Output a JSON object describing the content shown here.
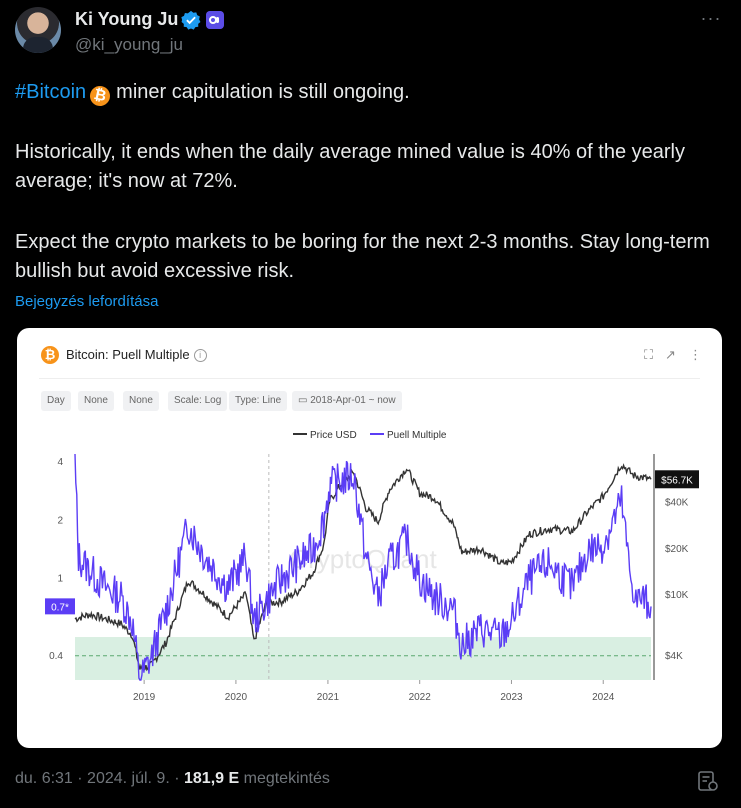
{
  "author": {
    "name": "Ki Young Ju",
    "handle": "@ki_young_ju"
  },
  "tweet": {
    "hashtag": "#Bitcoin",
    "line1_rest": "miner capitulation is still ongoing.",
    "para2": "Historically, it ends when the daily average mined value is 40% of the yearly average; it's now at 72%.",
    "para3": "Expect the crypto markets to be boring for the next 2-3 months. Stay long-term bullish but avoid excessive risk.",
    "translate_label": "Bejegyzés lefordítása"
  },
  "card": {
    "title": "Bitcoin: Puell Multiple",
    "filters": [
      "Day",
      "None",
      "None",
      "Scale: Log",
      "Type: Line",
      "2018-Apr-01 ~ now"
    ],
    "watermark": "CryptoQuant"
  },
  "colors": {
    "price": "#333333",
    "puell": "#5b3df5",
    "band": "#d9efe2",
    "link": "#1d9bf0"
  },
  "chart_data": {
    "type": "line",
    "title": "Bitcoin: Puell Multiple",
    "x_range": [
      "2018-04-01",
      "2024-07-09"
    ],
    "x_ticks": [
      "2019",
      "2020",
      "2021",
      "2022",
      "2023",
      "2024"
    ],
    "left_axis": {
      "label": "Puell Multiple",
      "scale": "log",
      "ticks": [
        4,
        2,
        1,
        0.4
      ],
      "current_label": "0.7*"
    },
    "right_axis": {
      "label": "Price USD",
      "scale": "log",
      "ticks": [
        "$40K",
        "$20K",
        "$10K",
        "$4K"
      ],
      "current_label": "$56.7K"
    },
    "band": {
      "from": 0.3,
      "to": 0.5,
      "dashed_at": 0.4
    },
    "legend": [
      "Price USD",
      "Puell Multiple"
    ],
    "series": [
      {
        "name": "Price USD",
        "x": [
          "2018-04-01",
          "2018-06-01",
          "2018-08-01",
          "2018-10-01",
          "2018-11-15",
          "2018-12-15",
          "2019-02-01",
          "2019-04-01",
          "2019-06-26",
          "2019-09-01",
          "2019-12-01",
          "2020-02-10",
          "2020-03-13",
          "2020-05-01",
          "2020-07-01",
          "2020-09-01",
          "2020-11-01",
          "2020-12-15",
          "2021-01-08",
          "2021-02-20",
          "2021-04-14",
          "2021-06-01",
          "2021-07-20",
          "2021-09-01",
          "2021-11-10",
          "2022-01-01",
          "2022-03-01",
          "2022-05-15",
          "2022-06-18",
          "2022-09-01",
          "2022-11-21",
          "2023-01-01",
          "2023-03-15",
          "2023-06-01",
          "2023-09-01",
          "2023-11-01",
          "2024-01-01",
          "2024-03-14",
          "2024-05-01",
          "2024-07-09"
        ],
        "values": [
          7000,
          7500,
          7000,
          6500,
          5500,
          3300,
          3500,
          5000,
          12500,
          10000,
          7200,
          10200,
          5000,
          8800,
          9100,
          10500,
          13800,
          21000,
          41000,
          52000,
          63000,
          37000,
          30000,
          48000,
          67000,
          46000,
          43000,
          29000,
          19000,
          20000,
          16000,
          16500,
          25000,
          27000,
          26000,
          35000,
          44000,
          71000,
          60000,
          56700
        ]
      },
      {
        "name": "Puell Multiple",
        "x": [
          "2018-04-01",
          "2018-04-15",
          "2018-06-01",
          "2018-08-01",
          "2018-10-01",
          "2018-11-15",
          "2018-12-15",
          "2019-02-01",
          "2019-04-01",
          "2019-06-26",
          "2019-09-01",
          "2019-12-01",
          "2020-02-10",
          "2020-03-13",
          "2020-05-11",
          "2020-07-01",
          "2020-09-01",
          "2020-11-01",
          "2020-12-15",
          "2021-01-08",
          "2021-02-20",
          "2021-04-14",
          "2021-06-01",
          "2021-07-20",
          "2021-09-01",
          "2021-11-10",
          "2022-01-01",
          "2022-03-01",
          "2022-05-15",
          "2022-06-18",
          "2022-09-01",
          "2022-11-21",
          "2023-01-01",
          "2023-03-15",
          "2023-06-01",
          "2023-09-01",
          "2023-11-01",
          "2024-01-01",
          "2024-03-14",
          "2024-04-20",
          "2024-05-15",
          "2024-06-01",
          "2024-07-09"
        ],
        "values": [
          4,
          1.3,
          1.1,
          0.9,
          0.8,
          0.6,
          0.3,
          0.4,
          0.7,
          1.9,
          1.3,
          0.9,
          1.3,
          0.6,
          0.8,
          1.0,
          1.2,
          1.4,
          2.0,
          3.0,
          3.2,
          3.4,
          1.3,
          0.8,
          1.2,
          1.6,
          1.0,
          0.8,
          0.7,
          0.45,
          0.55,
          0.5,
          0.6,
          1.0,
          1.2,
          0.9,
          1.4,
          1.5,
          2.5,
          1.0,
          0.75,
          0.8,
          0.72
        ]
      }
    ]
  },
  "footer": {
    "time": "du. 6:31 · 2024. júl. 9. ·",
    "views": "181,9 E",
    "views_label": "megtekintés"
  }
}
